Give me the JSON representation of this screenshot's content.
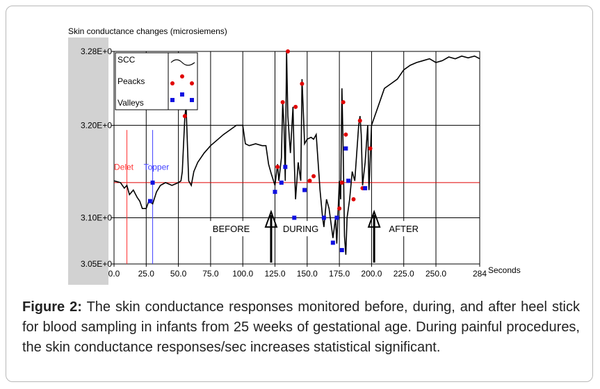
{
  "caption": {
    "label": "Figure 2:",
    "text": "The skin conductance responses monitored before, during, and after heel stick for blood sampling in infants from 25 weeks of gestational age. During painful procedures, the skin conductance responses/sec increases statistical significant."
  },
  "chart_data": {
    "type": "line",
    "ylabel": "Skin conductance changes (microsiemens)",
    "xlabel": "Seconds",
    "xlim": [
      0,
      284
    ],
    "ylim": [
      3.05,
      3.28
    ],
    "x_ticks": [
      0,
      25,
      50,
      75,
      100,
      125,
      150,
      175,
      200,
      225,
      250,
      284
    ],
    "x_tick_labels": [
      "0.0",
      "25.0",
      "50.0",
      "75.0",
      "100.0",
      "125.0",
      "150.0",
      "175.0",
      "200.0",
      "225.0",
      "250.0",
      "284"
    ],
    "y_ticks": [
      3.05,
      3.1,
      3.2,
      3.28
    ],
    "y_tick_labels": [
      "3.05E+0",
      "3.10E+0",
      "3.20E+0",
      "3.28E+0"
    ],
    "grid_x": [
      0,
      25,
      50,
      75,
      100,
      125,
      150,
      175,
      200,
      225,
      250
    ],
    "grid_y": [
      3.1,
      3.2
    ],
    "threshold_y": 3.138,
    "threshold_color": "#e00000",
    "delete_line_x": 10,
    "delete_label": "Delet",
    "topper_line_x": 30,
    "topper_label": "Topper",
    "delete_color": "#ff3030",
    "topper_color": "#4040ff",
    "legend": {
      "position": "top-left",
      "items": [
        {
          "label": "SCC",
          "marker": "line",
          "color": "#000000"
        },
        {
          "label": "Peacks",
          "marker": "dot",
          "color": "#e00000"
        },
        {
          "label": "Valleys",
          "marker": "square",
          "color": "#1010e0"
        }
      ]
    },
    "phases": [
      {
        "label": "BEFORE",
        "x": 91
      },
      {
        "label": "DURING",
        "x": 145
      },
      {
        "label": "AFTER",
        "x": 225
      }
    ],
    "arrows_x": [
      122,
      202
    ],
    "series": [
      {
        "color": "#000000",
        "x": [
          0,
          5,
          8,
          10,
          12,
          15,
          18,
          20,
          22,
          25,
          27,
          30,
          33,
          36,
          40,
          45,
          50,
          52,
          53,
          55,
          56,
          58,
          60,
          62,
          65,
          70,
          75,
          80,
          85,
          90,
          95,
          100,
          102,
          105,
          110,
          115,
          118,
          120,
          122,
          125,
          127,
          128,
          130,
          131,
          132,
          133,
          134,
          135,
          137,
          139,
          140,
          141,
          143,
          145,
          146,
          148,
          150,
          153,
          155,
          157,
          160,
          162,
          163,
          165,
          167,
          170,
          172,
          173,
          175,
          176,
          177,
          178,
          179,
          180,
          181,
          183,
          185,
          187,
          190,
          191,
          192,
          193,
          195,
          197,
          198,
          200,
          205,
          210,
          215,
          220,
          225,
          230,
          235,
          240,
          245,
          250,
          255,
          260,
          265,
          270,
          275,
          280,
          284
        ],
        "y": [
          3.14,
          3.138,
          3.132,
          3.135,
          3.125,
          3.13,
          3.122,
          3.118,
          3.11,
          3.11,
          3.118,
          3.115,
          3.128,
          3.135,
          3.138,
          3.135,
          3.138,
          3.14,
          3.15,
          3.21,
          3.22,
          3.14,
          3.135,
          3.15,
          3.16,
          3.17,
          3.178,
          3.184,
          3.19,
          3.195,
          3.2,
          3.2,
          3.18,
          3.178,
          3.18,
          3.178,
          3.178,
          3.158,
          3.148,
          3.135,
          3.158,
          3.14,
          3.165,
          3.225,
          3.2,
          3.14,
          3.28,
          3.21,
          3.17,
          3.22,
          3.16,
          3.12,
          3.16,
          3.14,
          3.25,
          3.18,
          3.185,
          3.187,
          3.185,
          3.19,
          3.13,
          3.1,
          3.09,
          3.12,
          3.11,
          3.078,
          3.1,
          3.072,
          3.14,
          3.12,
          3.24,
          3.17,
          3.08,
          3.06,
          3.1,
          3.12,
          3.15,
          3.14,
          3.2,
          3.21,
          3.19,
          3.135,
          3.16,
          3.2,
          3.13,
          3.2,
          3.22,
          3.24,
          3.245,
          3.25,
          3.26,
          3.265,
          3.268,
          3.27,
          3.272,
          3.268,
          3.27,
          3.274,
          3.272,
          3.275,
          3.273,
          3.275,
          3.272
        ]
      }
    ],
    "peaks": {
      "color": "#e00000",
      "x": [
        55,
        127,
        131,
        135,
        141,
        146,
        155,
        175,
        178,
        180,
        186,
        191,
        199
      ],
      "y": [
        3.21,
        3.155,
        3.225,
        3.28,
        3.22,
        3.245,
        3.145,
        3.11,
        3.225,
        3.19,
        3.12,
        3.205,
        3.175
      ],
      "extra_x": [
        177,
        193,
        152
      ],
      "extra_y": [
        3.138,
        3.132,
        3.14
      ]
    },
    "valleys": {
      "color": "#1010e0",
      "x": [
        28,
        30,
        125,
        130,
        133,
        140,
        148,
        163,
        170,
        173,
        177,
        180,
        182,
        195
      ],
      "y": [
        3.118,
        3.138,
        3.128,
        3.138,
        3.155,
        3.1,
        3.13,
        3.1,
        3.073,
        3.1,
        3.065,
        3.175,
        3.14,
        3.132
      ]
    }
  }
}
